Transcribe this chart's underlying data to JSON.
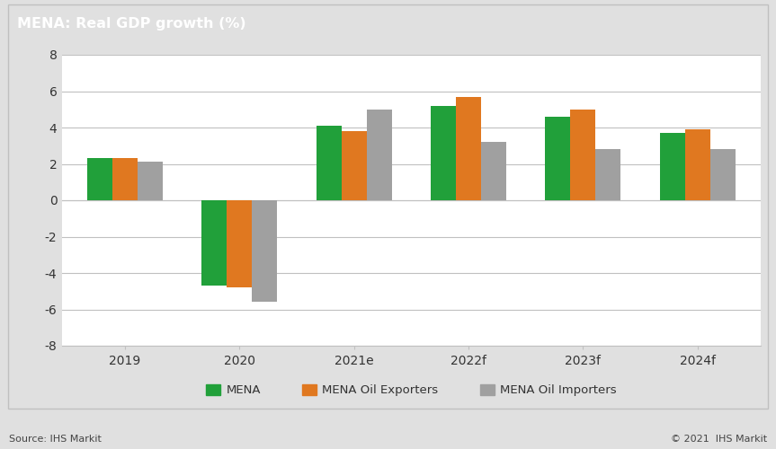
{
  "title": "MENA: Real GDP growth (%)",
  "title_bg_color": "#808080",
  "title_text_color": "#ffffff",
  "categories": [
    "2019",
    "2020",
    "2021e",
    "2022f",
    "2023f",
    "2024f"
  ],
  "series": {
    "MENA": [
      2.3,
      -4.7,
      4.1,
      5.2,
      4.6,
      3.7
    ],
    "MENA Oil Exporters": [
      2.3,
      -4.8,
      3.8,
      5.7,
      5.0,
      3.9
    ],
    "MENA Oil Importers": [
      2.1,
      -5.6,
      5.0,
      3.2,
      2.8,
      2.8
    ]
  },
  "colors": {
    "MENA": "#21a03a",
    "MENA Oil Exporters": "#e07820",
    "MENA Oil Importers": "#a0a0a0"
  },
  "ylim": [
    -8,
    8
  ],
  "yticks": [
    -8,
    -6,
    -4,
    -2,
    0,
    2,
    4,
    6,
    8
  ],
  "bar_width": 0.22,
  "plot_bg_color": "#ffffff",
  "fig_bg_color": "#ffffff",
  "outer_bg_color": "#e0e0e0",
  "grid_color": "#c0c0c0",
  "source_text": "Source: IHS Markit",
  "copyright_text": "© 2021  IHS Markit",
  "legend_labels": [
    "MENA",
    "MENA Oil Exporters",
    "MENA Oil Importers"
  ],
  "border_color": "#c0c0c0"
}
